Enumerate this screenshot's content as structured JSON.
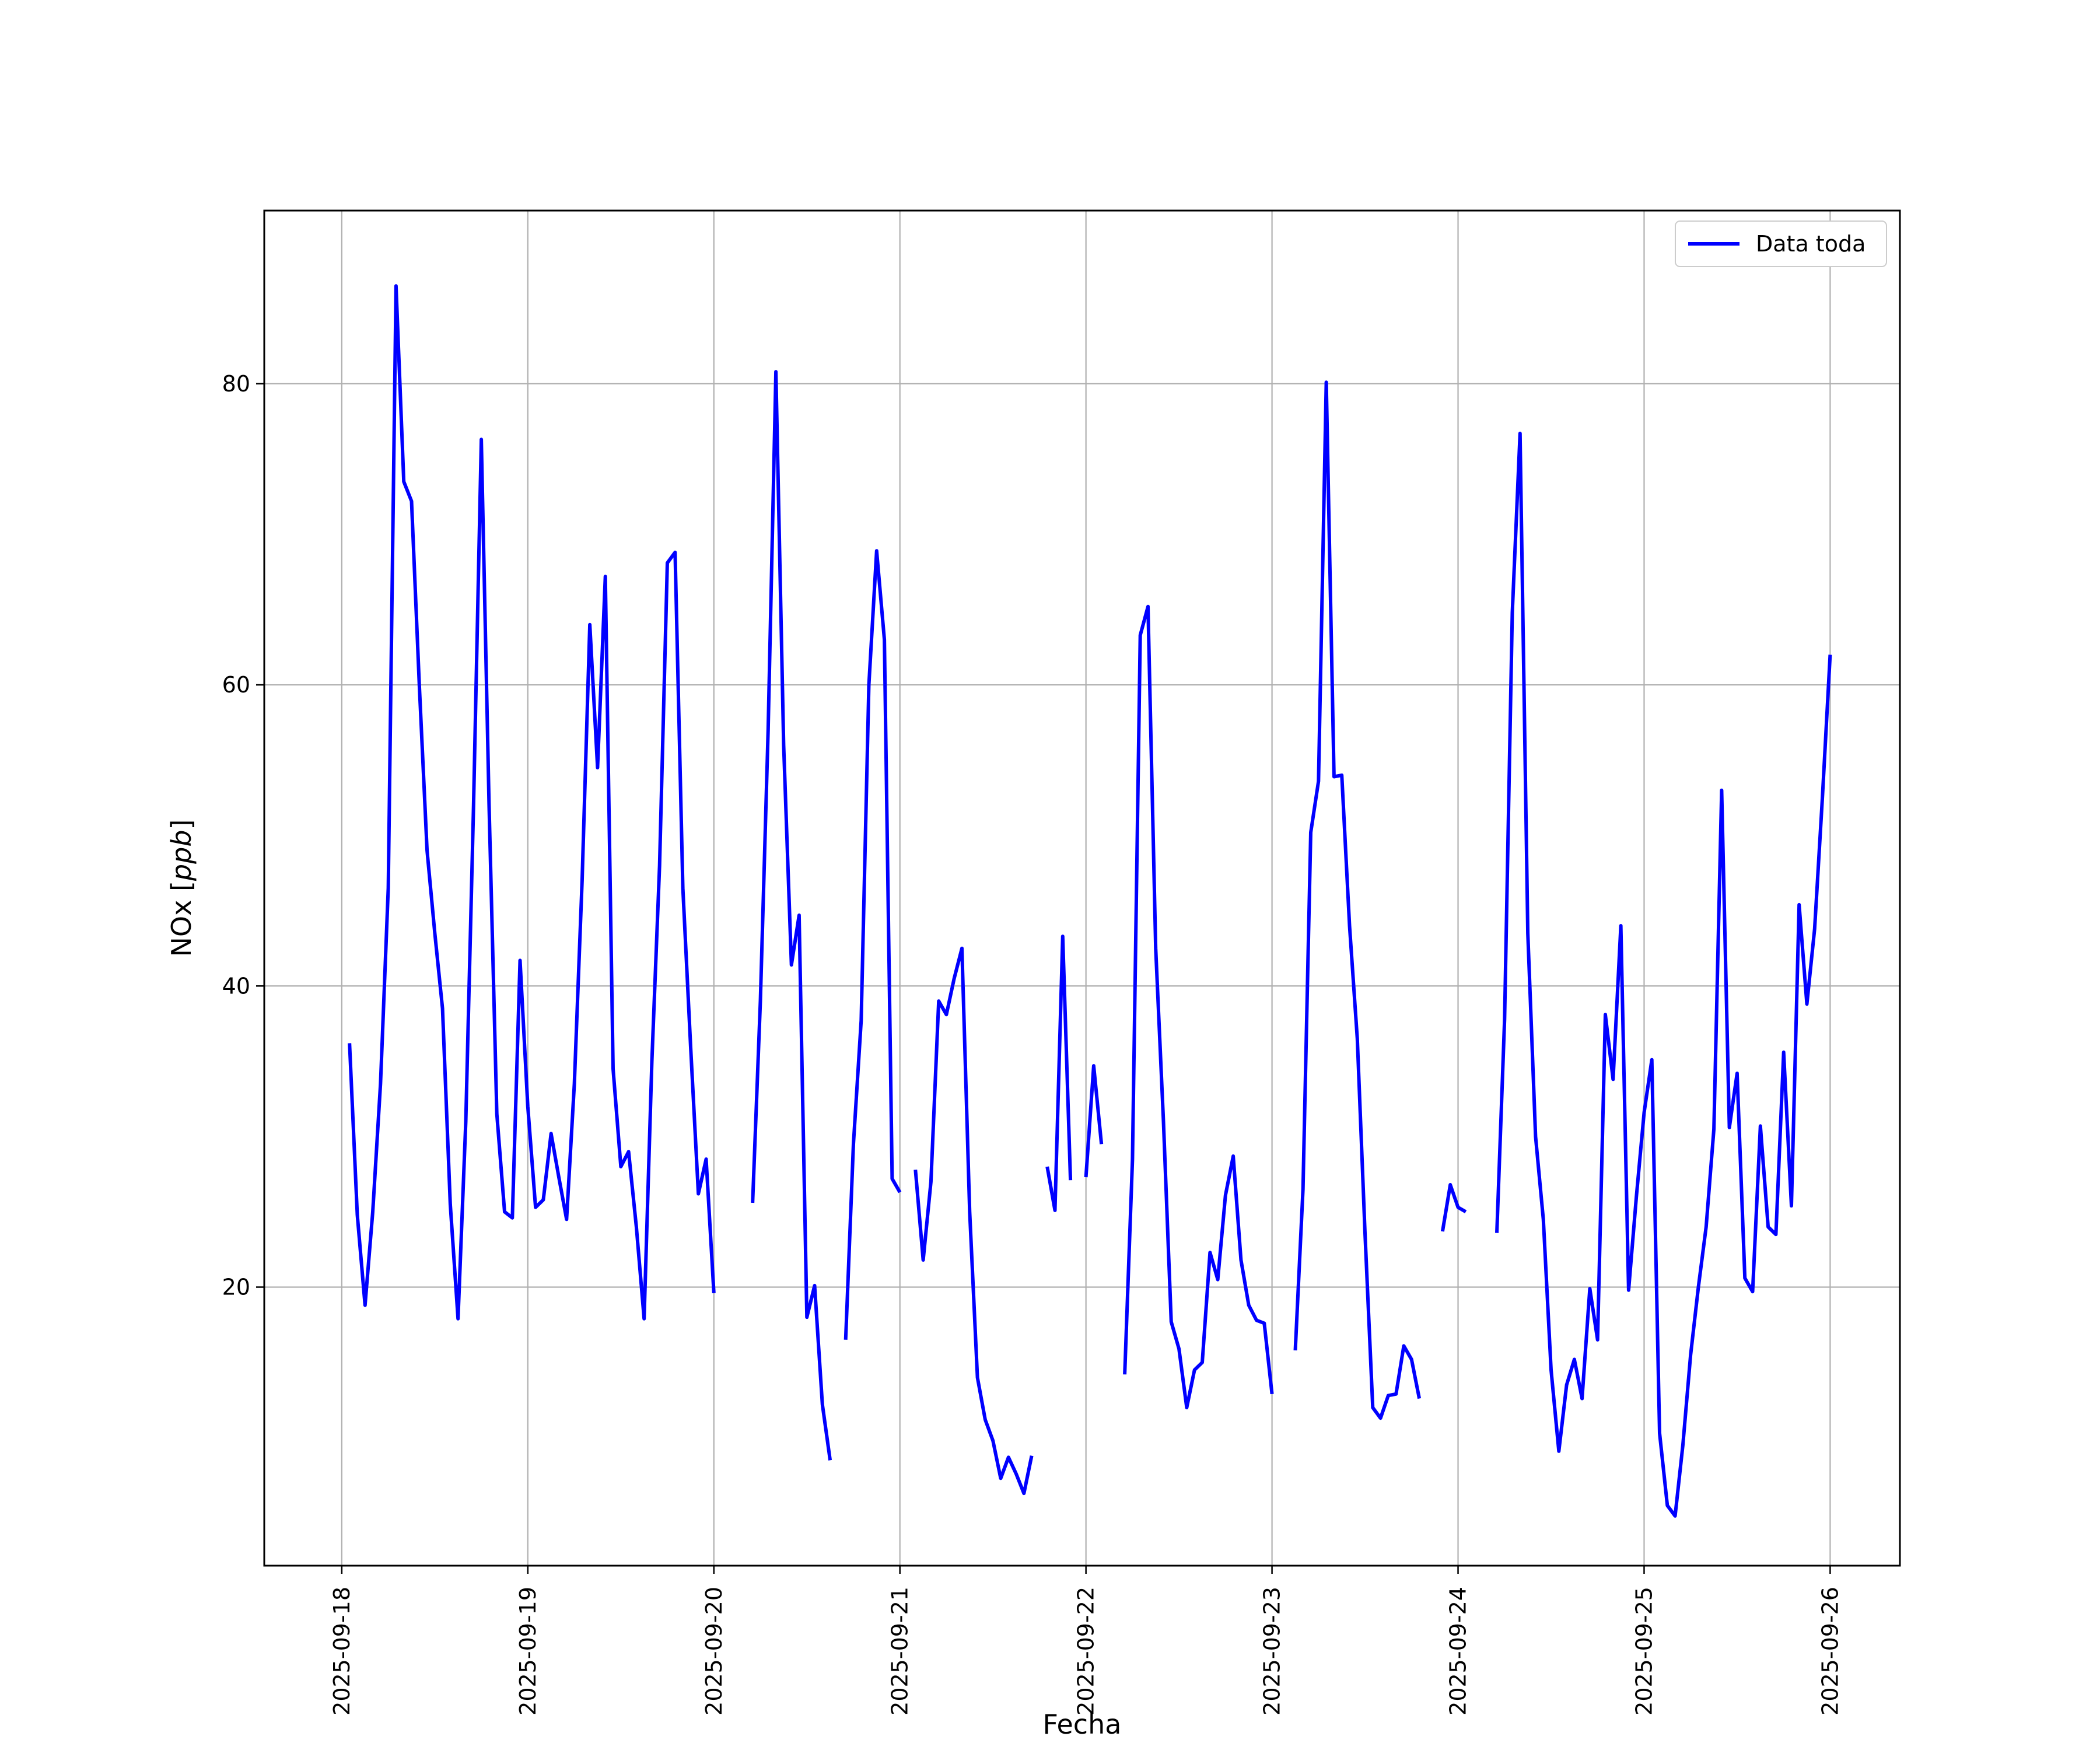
{
  "chart_data": {
    "type": "line",
    "title": "",
    "xlabel": "Fecha",
    "ylabel": "NOx [ppb]",
    "ylabel_base": "NOx ",
    "ylabel_unit": "ppb",
    "xlim": [
      "2025-09-17 14:00",
      "2025-09-26 09:00"
    ],
    "ylim": [
      1.5,
      91.5
    ],
    "yticks": [
      20,
      40,
      60,
      80
    ],
    "xticks": [
      "2025-09-18",
      "2025-09-19",
      "2025-09-20",
      "2025-09-21",
      "2025-09-22",
      "2025-09-23",
      "2025-09-24",
      "2025-09-25",
      "2025-09-26"
    ],
    "grid": true,
    "legend": {
      "position": "top-right",
      "entries": [
        "Data toda"
      ]
    },
    "series": [
      {
        "name": "Data toda",
        "color": "#0000ff",
        "segments": [
          [
            [
              "2025-09-18 01:00",
              36.2
            ],
            [
              "2025-09-18 02:00",
              24.8
            ],
            [
              "2025-09-18 03:00",
              18.8
            ],
            [
              "2025-09-18 04:00",
              25.0
            ],
            [
              "2025-09-18 05:00",
              33.5
            ],
            [
              "2025-09-18 06:00",
              46.5
            ],
            [
              "2025-09-18 07:00",
              86.5
            ],
            [
              "2025-09-18 08:00",
              73.5
            ],
            [
              "2025-09-18 09:00",
              72.2
            ],
            [
              "2025-09-18 10:00",
              60.0
            ],
            [
              "2025-09-18 11:00",
              49.0
            ],
            [
              "2025-09-18 12:00",
              43.5
            ],
            [
              "2025-09-18 13:00",
              38.5
            ],
            [
              "2025-09-18 14:00",
              25.5
            ],
            [
              "2025-09-18 15:00",
              17.9
            ],
            [
              "2025-09-18 16:00",
              31.0
            ],
            [
              "2025-09-18 17:00",
              52.0
            ],
            [
              "2025-09-18 18:00",
              76.3
            ],
            [
              "2025-09-18 19:00",
              52.0
            ],
            [
              "2025-09-18 20:00",
              31.5
            ],
            [
              "2025-09-18 21:00",
              25.0
            ],
            [
              "2025-09-18 22:00",
              24.6
            ],
            [
              "2025-09-18 23:00",
              41.7
            ],
            [
              "2025-09-19 00:00",
              32.0
            ],
            [
              "2025-09-19 01:00",
              25.3
            ],
            [
              "2025-09-19 02:00",
              25.8
            ],
            [
              "2025-09-19 03:00",
              30.2
            ],
            [
              "2025-09-19 04:00",
              27.3
            ],
            [
              "2025-09-19 05:00",
              24.5
            ],
            [
              "2025-09-19 06:00",
              33.5
            ],
            [
              "2025-09-19 07:00",
              47.0
            ],
            [
              "2025-09-19 08:00",
              64.0
            ],
            [
              "2025-09-19 09:00",
              54.5
            ],
            [
              "2025-09-19 10:00",
              67.2
            ],
            [
              "2025-09-19 11:00",
              34.5
            ],
            [
              "2025-09-19 12:00",
              28.0
            ],
            [
              "2025-09-19 13:00",
              29.0
            ],
            [
              "2025-09-19 14:00",
              24.0
            ],
            [
              "2025-09-19 15:00",
              17.9
            ],
            [
              "2025-09-19 16:00",
              35.0
            ],
            [
              "2025-09-19 17:00",
              48.0
            ],
            [
              "2025-09-19 18:00",
              68.1
            ],
            [
              "2025-09-19 19:00",
              68.8
            ],
            [
              "2025-09-19 20:00",
              46.5
            ],
            [
              "2025-09-19 21:00",
              36.0
            ],
            [
              "2025-09-19 22:00",
              26.2
            ],
            [
              "2025-09-19 23:00",
              28.5
            ],
            [
              "2025-09-20 00:00",
              19.6
            ]
          ],
          [
            [
              "2025-09-20 05:00",
              25.6
            ],
            [
              "2025-09-20 06:00",
              39.0
            ],
            [
              "2025-09-20 07:00",
              57.0
            ],
            [
              "2025-09-20 08:00",
              80.8
            ],
            [
              "2025-09-20 09:00",
              56.0
            ],
            [
              "2025-09-20 10:00",
              41.4
            ],
            [
              "2025-09-20 11:00",
              44.7
            ],
            [
              "2025-09-20 12:00",
              18.0
            ],
            [
              "2025-09-20 13:00",
              20.1
            ],
            [
              "2025-09-20 14:00",
              12.2
            ],
            [
              "2025-09-20 15:00",
              8.5
            ]
          ],
          [
            [
              "2025-09-20 17:00",
              16.5
            ],
            [
              "2025-09-20 18:00",
              29.5
            ],
            [
              "2025-09-20 19:00",
              37.7
            ],
            [
              "2025-09-20 20:00",
              60.0
            ],
            [
              "2025-09-20 21:00",
              68.9
            ],
            [
              "2025-09-20 22:00",
              63.0
            ],
            [
              "2025-09-20 23:00",
              27.2
            ],
            [
              "2025-09-21 00:00",
              26.3
            ]
          ],
          [
            [
              "2025-09-21 02:00",
              27.8
            ],
            [
              "2025-09-21 03:00",
              21.8
            ],
            [
              "2025-09-21 04:00",
              27.0
            ],
            [
              "2025-09-21 05:00",
              39.0
            ],
            [
              "2025-09-21 06:00",
              38.1
            ],
            [
              "2025-09-21 07:00",
              40.5
            ],
            [
              "2025-09-21 08:00",
              42.5
            ],
            [
              "2025-09-21 09:00",
              25.0
            ],
            [
              "2025-09-21 10:00",
              14.0
            ],
            [
              "2025-09-21 11:00",
              11.2
            ],
            [
              "2025-09-21 12:00",
              9.8
            ],
            [
              "2025-09-21 13:00",
              7.3
            ],
            [
              "2025-09-21 14:00",
              8.7
            ],
            [
              "2025-09-21 15:00",
              7.6
            ],
            [
              "2025-09-21 16:00",
              6.3
            ],
            [
              "2025-09-21 17:00",
              8.8
            ]
          ],
          [
            [
              "2025-09-21 19:00",
              28.0
            ],
            [
              "2025-09-21 20:00",
              25.1
            ],
            [
              "2025-09-21 21:00",
              43.3
            ],
            [
              "2025-09-21 22:00",
              27.1
            ]
          ],
          [
            [
              "2025-09-22 00:00",
              27.3
            ],
            [
              "2025-09-22 01:00",
              34.7
            ],
            [
              "2025-09-22 02:00",
              29.5
            ]
          ],
          [
            [
              "2025-09-22 05:00",
              14.2
            ],
            [
              "2025-09-22 06:00",
              28.5
            ],
            [
              "2025-09-22 07:00",
              63.3
            ],
            [
              "2025-09-22 08:00",
              65.2
            ],
            [
              "2025-09-22 09:00",
              42.5
            ],
            [
              "2025-09-22 10:00",
              31.0
            ],
            [
              "2025-09-22 11:00",
              17.7
            ],
            [
              "2025-09-22 12:00",
              15.9
            ],
            [
              "2025-09-22 13:00",
              12.0
            ],
            [
              "2025-09-22 14:00",
              14.5
            ],
            [
              "2025-09-22 15:00",
              15.0
            ],
            [
              "2025-09-22 16:00",
              22.3
            ],
            [
              "2025-09-22 17:00",
              20.5
            ],
            [
              "2025-09-22 18:00",
              26.1
            ],
            [
              "2025-09-22 19:00",
              28.7
            ],
            [
              "2025-09-22 20:00",
              21.8
            ],
            [
              "2025-09-22 21:00",
              18.8
            ],
            [
              "2025-09-22 22:00",
              17.8
            ],
            [
              "2025-09-22 23:00",
              17.6
            ],
            [
              "2025-09-23 00:00",
              12.9
            ]
          ],
          [
            [
              "2025-09-23 03:00",
              15.8
            ],
            [
              "2025-09-23 04:00",
              26.5
            ],
            [
              "2025-09-23 05:00",
              50.2
            ],
            [
              "2025-09-23 06:00",
              53.6
            ],
            [
              "2025-09-23 07:00",
              80.1
            ],
            [
              "2025-09-23 08:00",
              53.9
            ],
            [
              "2025-09-23 09:00",
              54.0
            ],
            [
              "2025-09-23 10:00",
              44.0
            ],
            [
              "2025-09-23 11:00",
              36.5
            ],
            [
              "2025-09-23 12:00",
              23.5
            ],
            [
              "2025-09-23 13:00",
              12.0
            ],
            [
              "2025-09-23 14:00",
              11.3
            ],
            [
              "2025-09-23 15:00",
              12.8
            ],
            [
              "2025-09-23 16:00",
              12.9
            ],
            [
              "2025-09-23 17:00",
              16.1
            ],
            [
              "2025-09-23 18:00",
              15.2
            ],
            [
              "2025-09-23 19:00",
              12.6
            ]
          ],
          [
            [
              "2025-09-23 22:00",
              23.7
            ],
            [
              "2025-09-23 23:00",
              26.8
            ],
            [
              "2025-09-24 00:00",
              25.3
            ],
            [
              "2025-09-24 01:00",
              25.0
            ]
          ],
          [
            [
              "2025-09-24 05:00",
              23.6
            ],
            [
              "2025-09-24 06:00",
              37.8
            ],
            [
              "2025-09-24 07:00",
              64.8
            ],
            [
              "2025-09-24 08:00",
              76.7
            ],
            [
              "2025-09-24 09:00",
              43.5
            ],
            [
              "2025-09-24 10:00",
              30.0
            ],
            [
              "2025-09-24 11:00",
              24.5
            ],
            [
              "2025-09-24 12:00",
              14.5
            ],
            [
              "2025-09-24 13:00",
              9.1
            ],
            [
              "2025-09-24 14:00",
              13.5
            ],
            [
              "2025-09-24 15:00",
              15.2
            ],
            [
              "2025-09-24 16:00",
              12.6
            ],
            [
              "2025-09-24 17:00",
              19.9
            ],
            [
              "2025-09-24 18:00",
              16.5
            ],
            [
              "2025-09-24 19:00",
              38.1
            ],
            [
              "2025-09-24 20:00",
              33.8
            ],
            [
              "2025-09-24 21:00",
              44.0
            ],
            [
              "2025-09-24 22:00",
              19.8
            ],
            [
              "2025-09-24 23:00",
              26.0
            ],
            [
              "2025-09-25 00:00",
              31.6
            ],
            [
              "2025-09-25 01:00",
              35.1
            ],
            [
              "2025-09-25 02:00",
              10.3
            ],
            [
              "2025-09-25 03:00",
              5.5
            ],
            [
              "2025-09-25 04:00",
              4.8
            ],
            [
              "2025-09-25 05:00",
              9.5
            ],
            [
              "2025-09-25 06:00",
              15.5
            ],
            [
              "2025-09-25 07:00",
              20.0
            ],
            [
              "2025-09-25 08:00",
              24.0
            ],
            [
              "2025-09-25 09:00",
              30.5
            ],
            [
              "2025-09-25 10:00",
              53.0
            ],
            [
              "2025-09-25 11:00",
              30.6
            ],
            [
              "2025-09-25 12:00",
              34.2
            ],
            [
              "2025-09-25 13:00",
              20.6
            ],
            [
              "2025-09-25 14:00",
              19.7
            ],
            [
              "2025-09-25 15:00",
              30.7
            ],
            [
              "2025-09-25 16:00",
              24.0
            ],
            [
              "2025-09-25 17:00",
              23.5
            ],
            [
              "2025-09-25 18:00",
              35.6
            ],
            [
              "2025-09-25 19:00",
              25.4
            ],
            [
              "2025-09-25 20:00",
              45.4
            ],
            [
              "2025-09-25 21:00",
              38.8
            ],
            [
              "2025-09-25 22:00",
              43.8
            ],
            [
              "2025-09-25 23:00",
              52.5
            ],
            [
              "2025-09-26 00:00",
              62.0
            ]
          ]
        ]
      }
    ]
  }
}
